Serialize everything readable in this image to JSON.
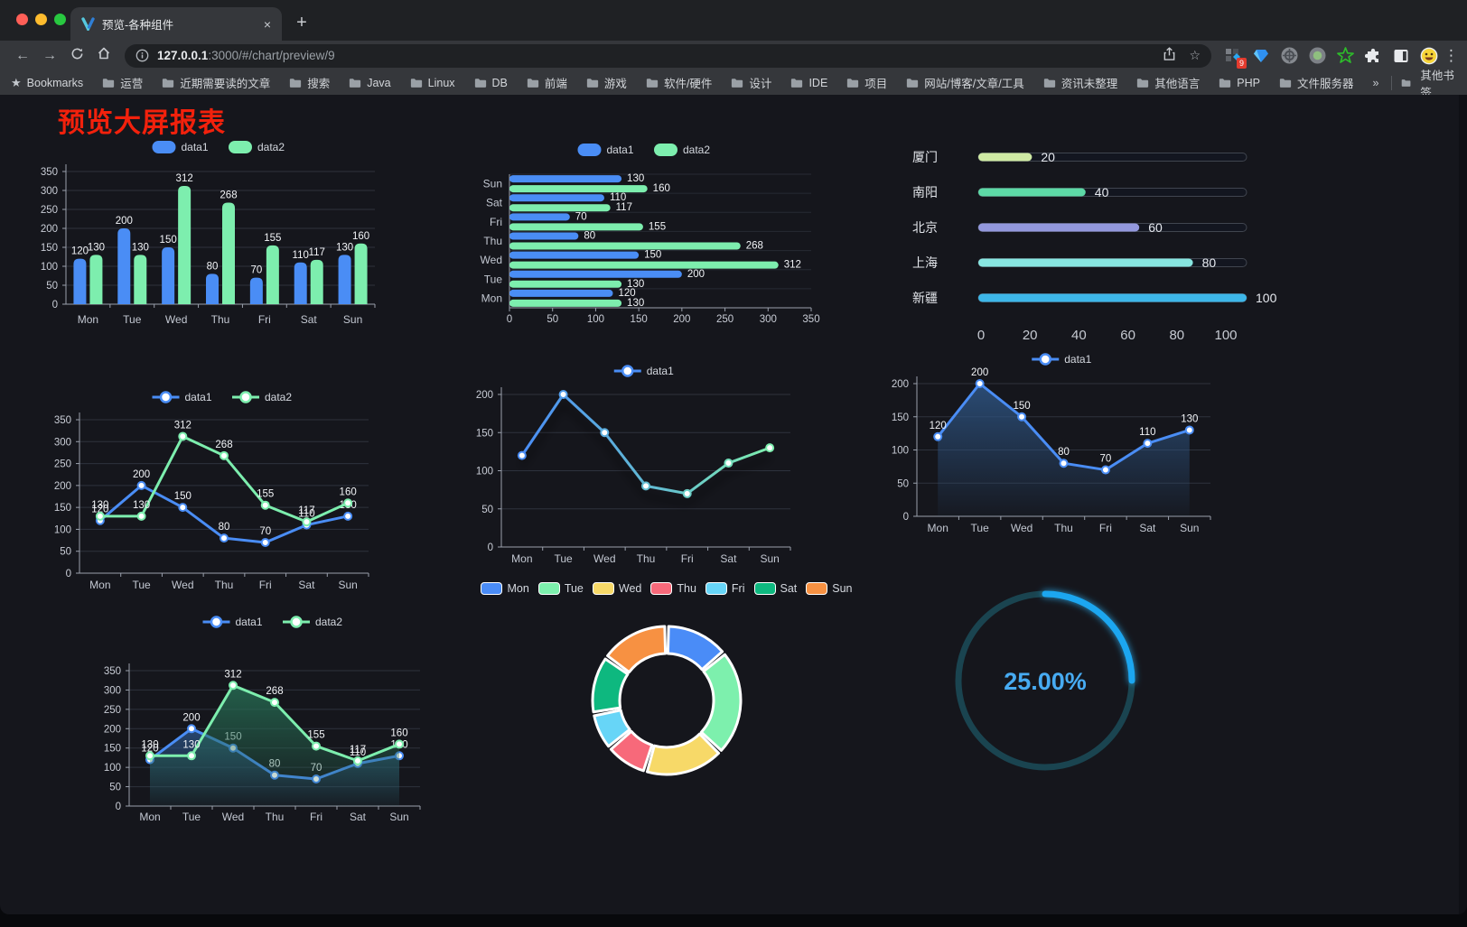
{
  "browser": {
    "tab_title": "预览-各种组件",
    "new_tab_label": "+",
    "close_tab_label": "×",
    "url_host": "127.0.0.1",
    "url_rest": ":3000/#/chart/preview/9",
    "extension_badge": "9",
    "bookmarks_label": "Bookmarks",
    "folders": [
      "运营",
      "近期需要读的文章",
      "搜索",
      "Java",
      "Linux",
      "DB",
      "前端",
      "游戏",
      "软件/硬件",
      "设计",
      "IDE",
      "项目",
      "网站/博客/文章/工具",
      "资讯未整理",
      "其他语言",
      "PHP",
      "文件服务器"
    ],
    "overflow_chevron": "»",
    "other_bookmarks": "其他书签"
  },
  "page": {
    "title": "预览大屏报表",
    "title_color": "#f2210c"
  },
  "chart_data": [
    {
      "id": "bar-grouped-vertical",
      "type": "bar",
      "categories": [
        "Mon",
        "Tue",
        "Wed",
        "Thu",
        "Fri",
        "Sat",
        "Sun"
      ],
      "series": [
        {
          "name": "data1",
          "color": "#4a8df5",
          "values": [
            120,
            200,
            150,
            80,
            70,
            110,
            130
          ]
        },
        {
          "name": "data2",
          "color": "#7deeae",
          "values": [
            130,
            130,
            312,
            268,
            155,
            117,
            160
          ]
        }
      ],
      "ylim": [
        0,
        350
      ],
      "ytick_step": 50,
      "value_labels": true,
      "legend_position": "top",
      "grid": true
    },
    {
      "id": "bar-grouped-horizontal",
      "type": "bar-horizontal",
      "categories": [
        "Mon",
        "Tue",
        "Wed",
        "Thu",
        "Fri",
        "Sat",
        "Sun"
      ],
      "series": [
        {
          "name": "data1",
          "color": "#4a8df5",
          "values": [
            120,
            200,
            150,
            80,
            70,
            110,
            130
          ]
        },
        {
          "name": "data2",
          "color": "#7deeae",
          "values": [
            130,
            130,
            312,
            268,
            155,
            117,
            160
          ]
        }
      ],
      "xlim": [
        0,
        350
      ],
      "xtick_step": 50,
      "value_labels": true,
      "legend_position": "top",
      "grid": true
    },
    {
      "id": "city-progress",
      "type": "bar-progress",
      "rows": [
        {
          "label": "厦门",
          "value": 20,
          "color": "#cfeaa4"
        },
        {
          "label": "南阳",
          "value": 40,
          "color": "#5dd9a6"
        },
        {
          "label": "北京",
          "value": 60,
          "color": "#9398dd"
        },
        {
          "label": "上海",
          "value": 80,
          "color": "#88e6e1"
        },
        {
          "label": "新疆",
          "value": 100,
          "color": "#3db6e8"
        }
      ],
      "xlim": [
        0,
        100
      ],
      "xticks": [
        0,
        20,
        40,
        60,
        80,
        100
      ]
    },
    {
      "id": "line-two-series",
      "type": "line",
      "categories": [
        "Mon",
        "Tue",
        "Wed",
        "Thu",
        "Fri",
        "Sat",
        "Sun"
      ],
      "series": [
        {
          "name": "data1",
          "color": "#4a8df5",
          "values": [
            120,
            200,
            150,
            80,
            70,
            110,
            130
          ]
        },
        {
          "name": "data2",
          "color": "#7deeae",
          "values": [
            130,
            130,
            312,
            268,
            155,
            117,
            160
          ]
        }
      ],
      "ylim": [
        0,
        350
      ],
      "ytick_step": 50,
      "value_labels": true,
      "legend_position": "top"
    },
    {
      "id": "line-gradient",
      "type": "line",
      "categories": [
        "Mon",
        "Tue",
        "Wed",
        "Thu",
        "Fri",
        "Sat",
        "Sun"
      ],
      "series": [
        {
          "name": "data1",
          "color": "#4a8df5",
          "color_end": "#7deeae",
          "gradient": true,
          "values": [
            120,
            200,
            150,
            80,
            70,
            110,
            130
          ]
        }
      ],
      "ylim": [
        0,
        200
      ],
      "ytick_step": 50,
      "value_labels": false,
      "shadow": true,
      "legend_position": "top"
    },
    {
      "id": "line-area-single",
      "type": "line",
      "categories": [
        "Mon",
        "Tue",
        "Wed",
        "Thu",
        "Fri",
        "Sat",
        "Sun"
      ],
      "series": [
        {
          "name": "data1",
          "color": "#4a8df5",
          "area": "#2e5584",
          "values": [
            120,
            200,
            150,
            80,
            70,
            110,
            130
          ]
        }
      ],
      "ylim": [
        0,
        200
      ],
      "ytick_step": 50,
      "value_labels": true,
      "legend_position": "top"
    },
    {
      "id": "line-area-double",
      "type": "line",
      "categories": [
        "Mon",
        "Tue",
        "Wed",
        "Thu",
        "Fri",
        "Sat",
        "Sun"
      ],
      "series": [
        {
          "name": "data1",
          "color": "#4a8df5",
          "area": "#2a4f7e",
          "values": [
            120,
            200,
            150,
            80,
            70,
            110,
            130
          ]
        },
        {
          "name": "data2",
          "color": "#7deeae",
          "area": "#266b52",
          "values": [
            130,
            130,
            312,
            268,
            155,
            117,
            160
          ]
        }
      ],
      "ylim": [
        0,
        350
      ],
      "ytick_step": 50,
      "value_labels": true,
      "legend_position": "top"
    },
    {
      "id": "weekday-donut",
      "type": "pie",
      "labels": [
        "Mon",
        "Tue",
        "Wed",
        "Thu",
        "Fri",
        "Sat",
        "Sun"
      ],
      "values": [
        120,
        200,
        150,
        80,
        70,
        110,
        130
      ],
      "colors": [
        "#4a8cf7",
        "#7df0ad",
        "#f7d968",
        "#f7697a",
        "#67d5f7",
        "#0eb87f",
        "#f79142"
      ],
      "legend_position": "top"
    },
    {
      "id": "percent-gauge",
      "type": "gauge",
      "value": 25,
      "max": 100,
      "label": "25.00%",
      "color": "#1ba6f0",
      "track_color": "#1a4450",
      "label_color": "#47abf2"
    }
  ]
}
